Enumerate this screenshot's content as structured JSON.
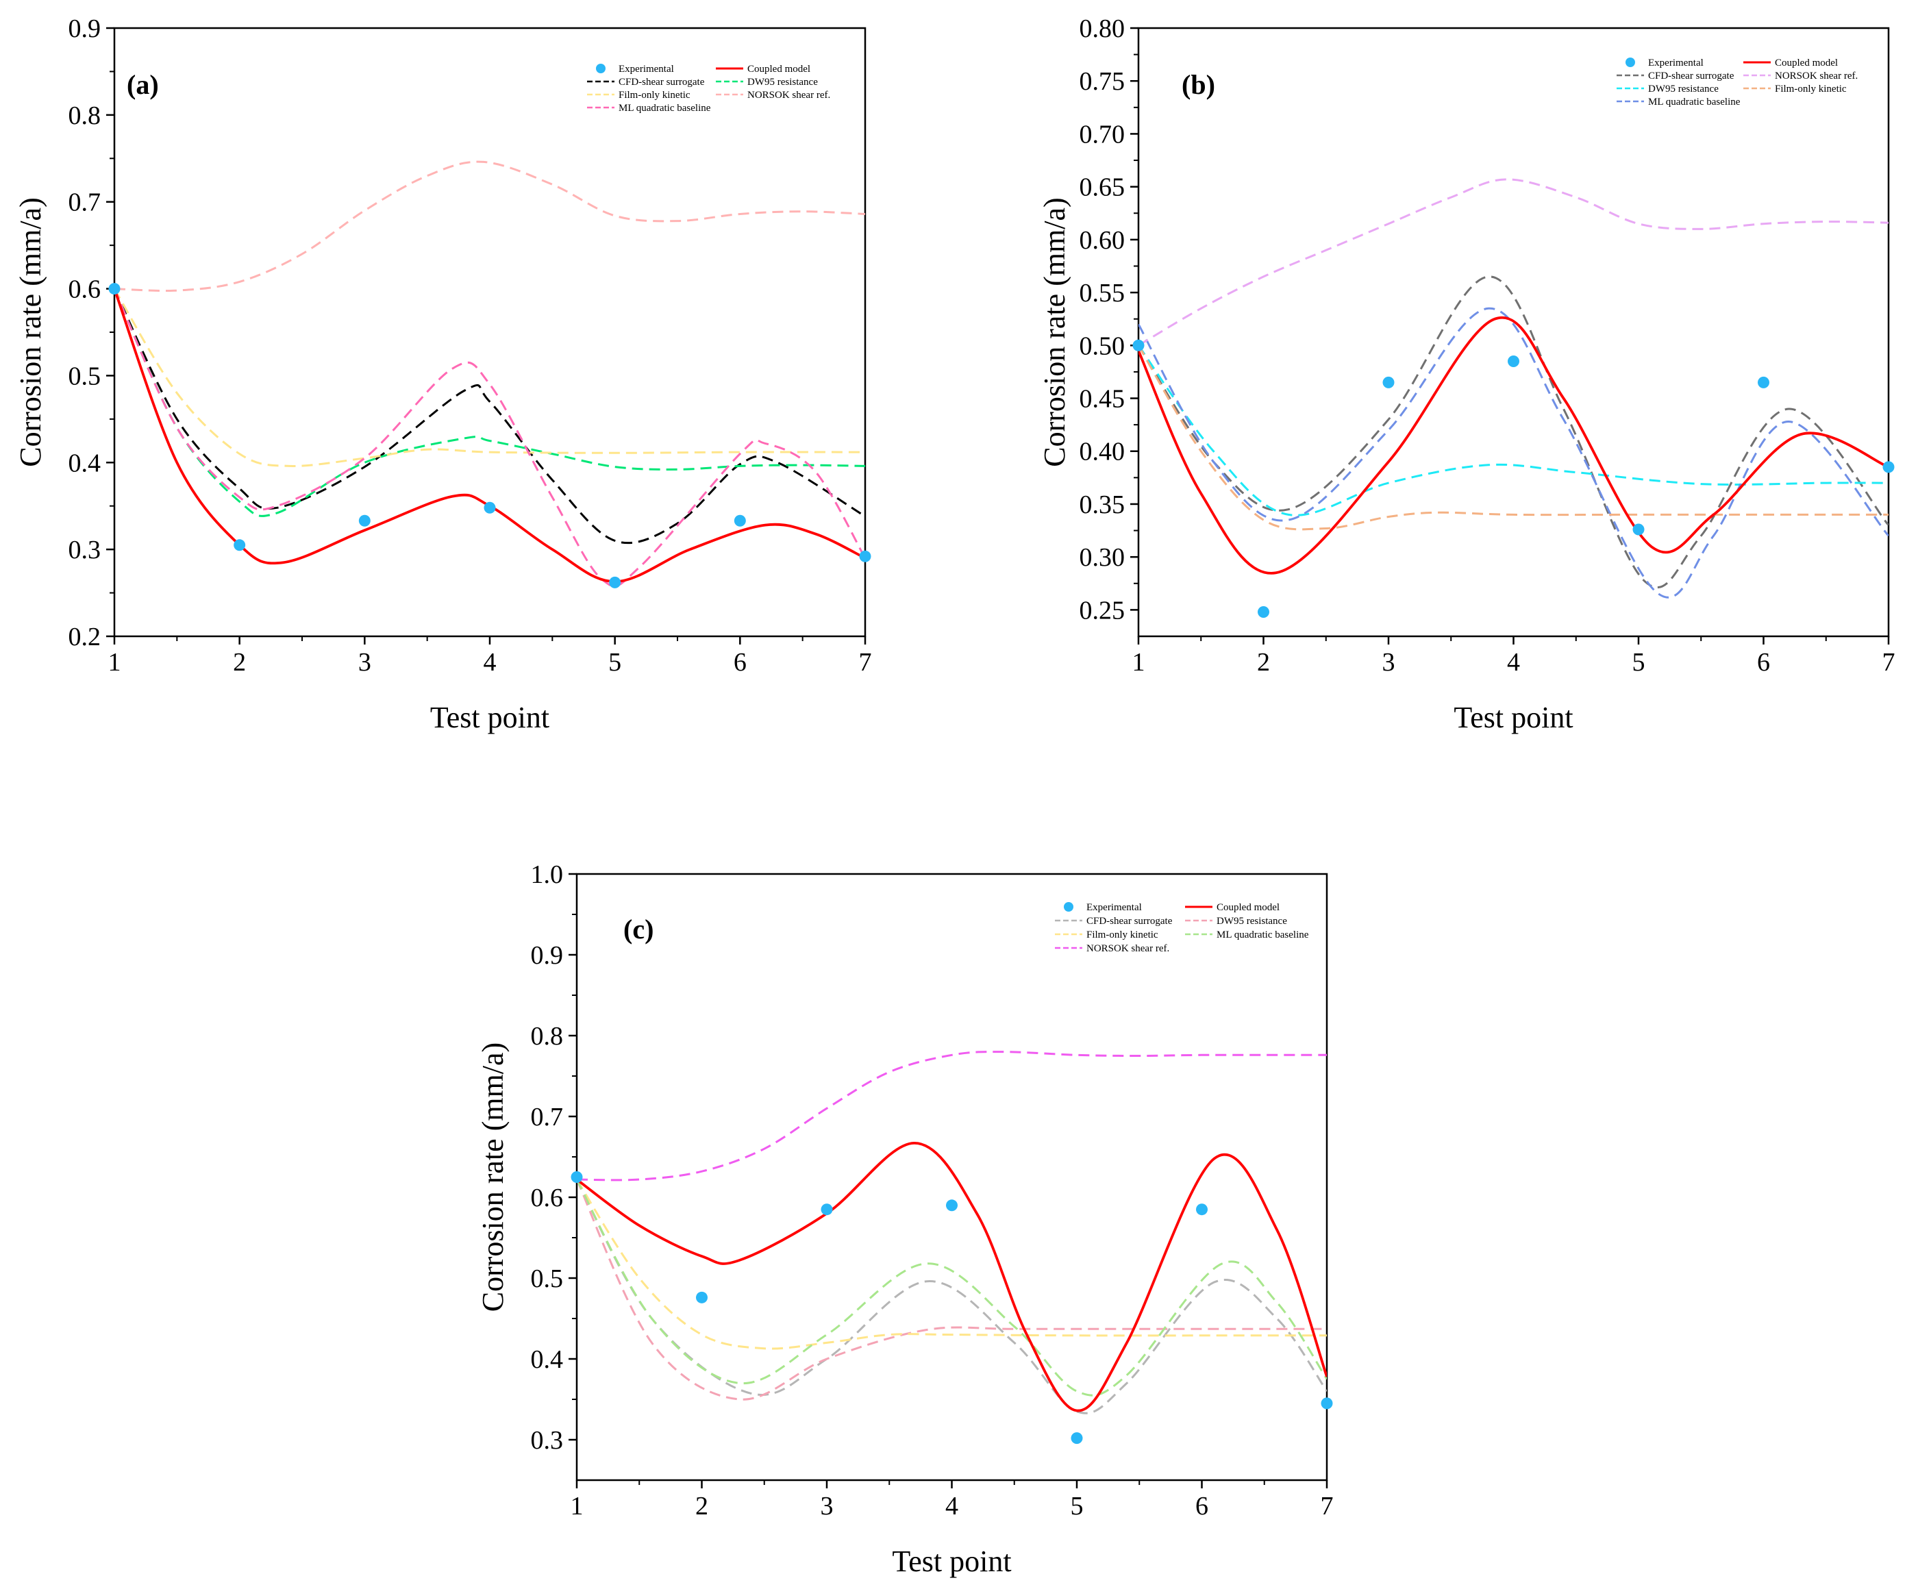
{
  "chart_data": [
    {
      "panel": "(a)",
      "type": "line",
      "xlabel": "Test point",
      "ylabel": "Corrosion rate (mm/a)",
      "xlim": [
        1,
        7
      ],
      "ylim": [
        0.2,
        0.9
      ],
      "xticks": [
        "1",
        "2",
        "3",
        "4",
        "5",
        "6",
        "7"
      ],
      "yticks": [
        "0.2",
        "0.3",
        "0.4",
        "0.5",
        "0.6",
        "0.7",
        "0.8",
        "0.9"
      ],
      "legend_location": "top-right",
      "experimental": {
        "name": "Experimental",
        "color": "#29b6f6",
        "x": [
          1,
          2,
          3,
          4,
          5,
          6,
          7
        ],
        "y": [
          0.6,
          0.305,
          0.333,
          0.348,
          0.262,
          0.333,
          0.292
        ]
      },
      "series": [
        {
          "name": "Coupled model",
          "color": "#ff0000",
          "dash": "solid",
          "x": [
            1,
            1.5,
            2,
            2.35,
            3,
            3.7,
            4,
            4.5,
            5,
            5.6,
            6.2,
            6.6,
            7
          ],
          "y": [
            0.6,
            0.4,
            0.305,
            0.285,
            0.322,
            0.361,
            0.35,
            0.3,
            0.263,
            0.3,
            0.328,
            0.318,
            0.29
          ]
        },
        {
          "name": "CFD-shear surrogate",
          "color": "#000000",
          "dash": "dashed",
          "x": [
            1,
            1.5,
            2,
            2.3,
            3,
            3.8,
            4,
            4.5,
            5,
            5.5,
            6,
            6.3,
            7
          ],
          "y": [
            0.6,
            0.45,
            0.37,
            0.348,
            0.395,
            0.483,
            0.47,
            0.38,
            0.31,
            0.33,
            0.398,
            0.4,
            0.338
          ]
        },
        {
          "name": "DW95 resistance",
          "color": "#00e676",
          "dash": "dashed",
          "x": [
            1,
            1.5,
            2,
            2.3,
            3,
            3.8,
            4,
            4.5,
            5,
            5.5,
            6,
            6.5,
            7
          ],
          "y": [
            0.6,
            0.44,
            0.355,
            0.342,
            0.4,
            0.428,
            0.425,
            0.41,
            0.395,
            0.392,
            0.396,
            0.397,
            0.396
          ]
        },
        {
          "name": "Film-only kinetic",
          "color": "#ffe58a",
          "dash": "dashed",
          "x": [
            1,
            1.5,
            2,
            2.4,
            3,
            3.5,
            4,
            5,
            6,
            7
          ],
          "y": [
            0.6,
            0.48,
            0.41,
            0.396,
            0.405,
            0.415,
            0.412,
            0.411,
            0.412,
            0.412
          ]
        },
        {
          "name": "NORSOK shear ref.",
          "color": "#ffb3b3",
          "dash": "dashed",
          "x": [
            1,
            1.5,
            2,
            2.5,
            3,
            3.5,
            3.95,
            4.5,
            5,
            5.5,
            6,
            6.5,
            7
          ],
          "y": [
            0.6,
            0.598,
            0.608,
            0.64,
            0.69,
            0.73,
            0.746,
            0.72,
            0.684,
            0.678,
            0.686,
            0.689,
            0.686
          ]
        },
        {
          "name": "ML quadratic baseline",
          "color": "#ff69b4",
          "dash": "dashed",
          "x": [
            1,
            1.5,
            2,
            2.3,
            3,
            3.7,
            4,
            4.5,
            4.9,
            5.2,
            6,
            6.2,
            6.6,
            7
          ],
          "y": [
            0.6,
            0.44,
            0.36,
            0.35,
            0.405,
            0.508,
            0.49,
            0.36,
            0.265,
            0.28,
            0.41,
            0.422,
            0.39,
            0.29
          ]
        }
      ],
      "legend_order": [
        "Experimental",
        "Coupled model",
        "CFD-shear surrogate",
        "DW95 resistance",
        "Film-only kinetic",
        "NORSOK shear ref.",
        "ML quadratic baseline"
      ]
    },
    {
      "panel": "(b)",
      "type": "line",
      "xlabel": "Test point",
      "ylabel": "Corrosion rate (mm/a)",
      "xlim": [
        1,
        7
      ],
      "ylim": [
        0.225,
        0.8
      ],
      "xticks": [
        "1",
        "2",
        "3",
        "4",
        "5",
        "6",
        "7"
      ],
      "yticks": [
        "0.25",
        "0.30",
        "0.35",
        "0.40",
        "0.45",
        "0.50",
        "0.55",
        "0.60",
        "0.65",
        "0.70",
        "0.75",
        "0.80"
      ],
      "legend_location": "top-right",
      "experimental": {
        "name": "Experimental",
        "color": "#29b6f6",
        "x": [
          1,
          2,
          3,
          4,
          5,
          6,
          7
        ],
        "y": [
          0.5,
          0.248,
          0.465,
          0.485,
          0.326,
          0.465,
          0.385
        ]
      },
      "series": [
        {
          "name": "Coupled model",
          "color": "#ff0000",
          "dash": "solid",
          "x": [
            1,
            1.5,
            2.1,
            3,
            3.85,
            4.4,
            5.1,
            5.6,
            6.3,
            7
          ],
          "y": [
            0.495,
            0.36,
            0.285,
            0.39,
            0.525,
            0.45,
            0.31,
            0.34,
            0.416,
            0.385
          ]
        },
        {
          "name": "CFD-shear surrogate",
          "color": "#707070",
          "dash": "dashed",
          "x": [
            1,
            1.6,
            2.2,
            3,
            3.8,
            4.4,
            5.05,
            5.5,
            6.2,
            7
          ],
          "y": [
            0.5,
            0.39,
            0.345,
            0.43,
            0.565,
            0.44,
            0.277,
            0.32,
            0.44,
            0.33
          ]
        },
        {
          "name": "DW95 resistance",
          "color": "#1de9f6",
          "dash": "dashed",
          "x": [
            1,
            1.6,
            2.2,
            3,
            3.8,
            4.5,
            5.5,
            6.5,
            7
          ],
          "y": [
            0.5,
            0.4,
            0.34,
            0.37,
            0.387,
            0.38,
            0.369,
            0.37,
            0.37
          ]
        },
        {
          "name": "ML quadratic baseline",
          "color": "#6f8fe6",
          "dash": "dashed",
          "x": [
            1,
            1.6,
            2.2,
            3,
            3.8,
            4.4,
            5.15,
            5.6,
            6.2,
            7
          ],
          "y": [
            0.52,
            0.39,
            0.335,
            0.42,
            0.535,
            0.43,
            0.266,
            0.32,
            0.428,
            0.32
          ]
        },
        {
          "name": "NORSOK shear ref.",
          "color": "#e8a8f4",
          "dash": "dashed",
          "x": [
            1,
            1.5,
            2,
            2.5,
            3,
            3.5,
            3.95,
            4.5,
            5,
            5.5,
            6,
            6.5,
            7
          ],
          "y": [
            0.5,
            0.535,
            0.565,
            0.59,
            0.615,
            0.64,
            0.657,
            0.64,
            0.615,
            0.61,
            0.615,
            0.617,
            0.616
          ]
        },
        {
          "name": "Film-only kinetic",
          "color": "#f4b183",
          "dash": "dashed",
          "x": [
            1,
            1.5,
            2,
            2.5,
            3,
            3.4,
            4,
            5,
            6,
            7
          ],
          "y": [
            0.5,
            0.4,
            0.335,
            0.327,
            0.338,
            0.342,
            0.34,
            0.34,
            0.34,
            0.34
          ]
        }
      ],
      "legend_order": [
        "Experimental",
        "Coupled model",
        "CFD-shear surrogate",
        "NORSOK shear ref.",
        "DW95 resistance",
        "Film-only kinetic",
        "ML quadratic baseline"
      ]
    },
    {
      "panel": "(c)",
      "type": "line",
      "xlabel": "Test point",
      "ylabel": "Corrosion rate (mm/a)",
      "xlim": [
        1,
        7
      ],
      "ylim": [
        0.25,
        1.0
      ],
      "xticks": [
        "1",
        "2",
        "3",
        "4",
        "5",
        "6",
        "7"
      ],
      "yticks": [
        "0.3",
        "0.4",
        "0.5",
        "0.6",
        "0.7",
        "0.8",
        "0.9",
        "1.0"
      ],
      "legend_location": "top-right",
      "experimental": {
        "name": "Experimental",
        "color": "#29b6f6",
        "x": [
          1,
          2,
          3,
          4,
          5,
          6,
          7
        ],
        "y": [
          0.625,
          0.476,
          0.585,
          0.59,
          0.302,
          0.585,
          0.345
        ]
      },
      "series": [
        {
          "name": "Coupled model",
          "color": "#ff0000",
          "dash": "solid",
          "x": [
            1,
            1.5,
            2,
            2.3,
            3,
            3.7,
            4.2,
            4.6,
            5,
            5.4,
            6.1,
            6.6,
            7
          ],
          "y": [
            0.622,
            0.565,
            0.527,
            0.522,
            0.58,
            0.667,
            0.58,
            0.43,
            0.336,
            0.42,
            0.648,
            0.56,
            0.378
          ]
        },
        {
          "name": "CFD-shear surrogate",
          "color": "#b5b5b5",
          "dash": "dashed",
          "x": [
            1,
            1.6,
            2.4,
            3,
            3.8,
            4.5,
            5,
            5.4,
            6.1,
            6.6,
            7
          ],
          "y": [
            0.622,
            0.45,
            0.357,
            0.4,
            0.496,
            0.42,
            0.335,
            0.37,
            0.495,
            0.45,
            0.36
          ]
        },
        {
          "name": "DW95 resistance",
          "color": "#f4a3b4",
          "dash": "dashed",
          "x": [
            1,
            1.6,
            2.3,
            3,
            3.8,
            4.5,
            5.5,
            6.5,
            7
          ],
          "y": [
            0.622,
            0.42,
            0.35,
            0.4,
            0.436,
            0.437,
            0.437,
            0.437,
            0.437
          ]
        },
        {
          "name": "Film-only kinetic",
          "color": "#ffe58a",
          "dash": "dashed",
          "x": [
            1,
            1.5,
            2,
            2.5,
            3,
            3.5,
            4,
            5,
            6,
            7
          ],
          "y": [
            0.622,
            0.5,
            0.43,
            0.413,
            0.42,
            0.43,
            0.43,
            0.429,
            0.429,
            0.429
          ]
        },
        {
          "name": "ML quadratic baseline",
          "color": "#a8e68c",
          "dash": "dashed",
          "x": [
            1,
            1.6,
            2.3,
            3,
            3.8,
            4.5,
            5,
            5.4,
            6.15,
            6.6,
            7
          ],
          "y": [
            0.622,
            0.45,
            0.37,
            0.43,
            0.518,
            0.44,
            0.36,
            0.38,
            0.517,
            0.47,
            0.375
          ]
        },
        {
          "name": "NORSOK shear ref.",
          "color": "#f05cf0",
          "dash": "dashed",
          "x": [
            1,
            1.5,
            2,
            2.5,
            3,
            3.5,
            4,
            4.4,
            5,
            5.5,
            6,
            6.5,
            7
          ],
          "y": [
            0.622,
            0.622,
            0.632,
            0.66,
            0.71,
            0.755,
            0.776,
            0.78,
            0.776,
            0.775,
            0.776,
            0.776,
            0.776
          ]
        }
      ],
      "legend_order": [
        "Experimental",
        "Coupled model",
        "CFD-shear surrogate",
        "DW95 resistance",
        "Film-only kinetic",
        "ML quadratic baseline",
        "NORSOK shear ref."
      ]
    }
  ]
}
